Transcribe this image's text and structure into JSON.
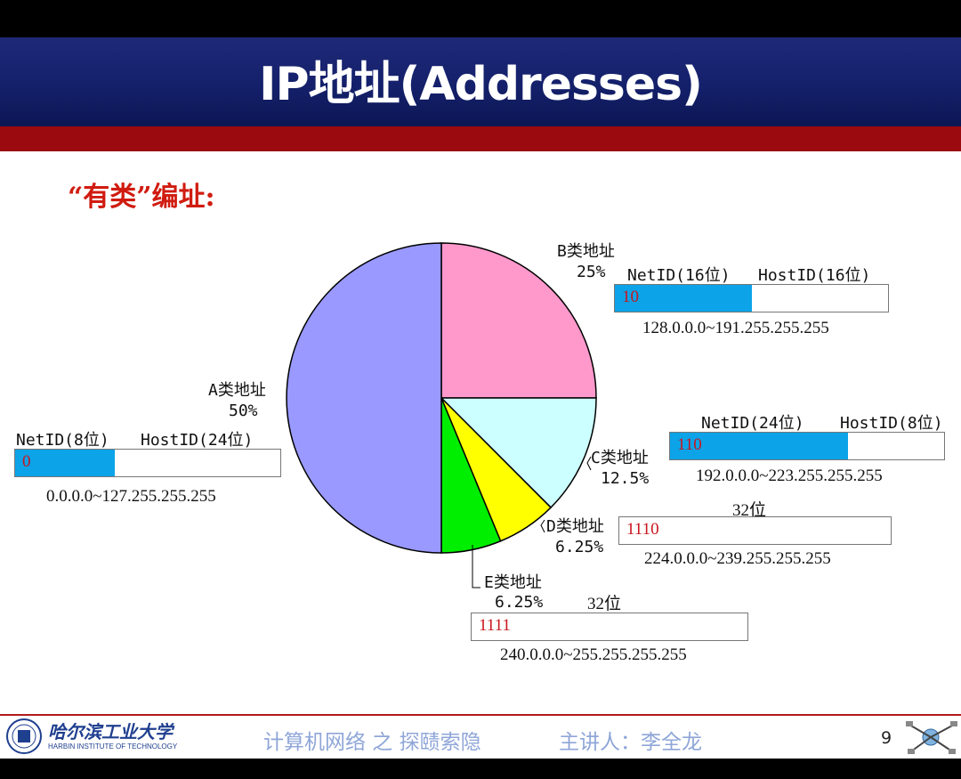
{
  "slide": {
    "title": "IP地址(Addresses)",
    "subtitle": "“有类”编址:",
    "page_number": "9"
  },
  "footer": {
    "university_cn": "哈尔滨工业大学",
    "university_en": "HARBIN INSTITUTE OF TECHNOLOGY",
    "course": "计算机网络 之 探赜索隐",
    "lecturer": "主讲人：李全龙"
  },
  "colors": {
    "header_blue": "#14206a",
    "red_band": "#9b0a0e",
    "netid_fill": "#0ca3e8",
    "prefix_red": "#c8161d"
  },
  "classes": {
    "A": {
      "label": "A类地址",
      "pct": "50%",
      "net_label": "NetID(8位)",
      "host_label": "HostID(24位)",
      "prefix": "0",
      "net_fraction": 0.375,
      "range": "0.0.0.0~127.255.255.255"
    },
    "B": {
      "label": "B类地址",
      "pct": "25%",
      "net_label": "NetID(16位)",
      "host_label": "HostID(16位)",
      "prefix": "10",
      "net_fraction": 0.5,
      "range": "128.0.0.0~191.255.255.255"
    },
    "C": {
      "label": "C类地址",
      "pct": "12.5%",
      "net_label": "NetID(24位)",
      "host_label": "HostID(8位)",
      "prefix": "110",
      "net_fraction": 0.65,
      "range": "192.0.0.0~223.255.255.255"
    },
    "D": {
      "label": "D类地址",
      "pct": "6.25%",
      "width_label": "32位",
      "prefix": "1110",
      "range": "224.0.0.0~239.255.255.255"
    },
    "E": {
      "label": "E类地址",
      "pct": "6.25%",
      "width_label": "32位",
      "prefix": "1111",
      "range": "240.0.0.0~255.255.255.255"
    }
  },
  "chart_data": {
    "type": "pie",
    "title": "",
    "start_angle_deg": 0,
    "direction": "clockwise",
    "slices": [
      {
        "label": "B类地址",
        "value": 25,
        "color": "#ff99cc"
      },
      {
        "label": "C类地址",
        "value": 12.5,
        "color": "#ccffff"
      },
      {
        "label": "D类地址",
        "value": 6.25,
        "color": "#ffff00"
      },
      {
        "label": "E类地址",
        "value": 6.25,
        "color": "#00ee00"
      },
      {
        "label": "A类地址",
        "value": 50,
        "color": "#9999ff"
      }
    ]
  }
}
